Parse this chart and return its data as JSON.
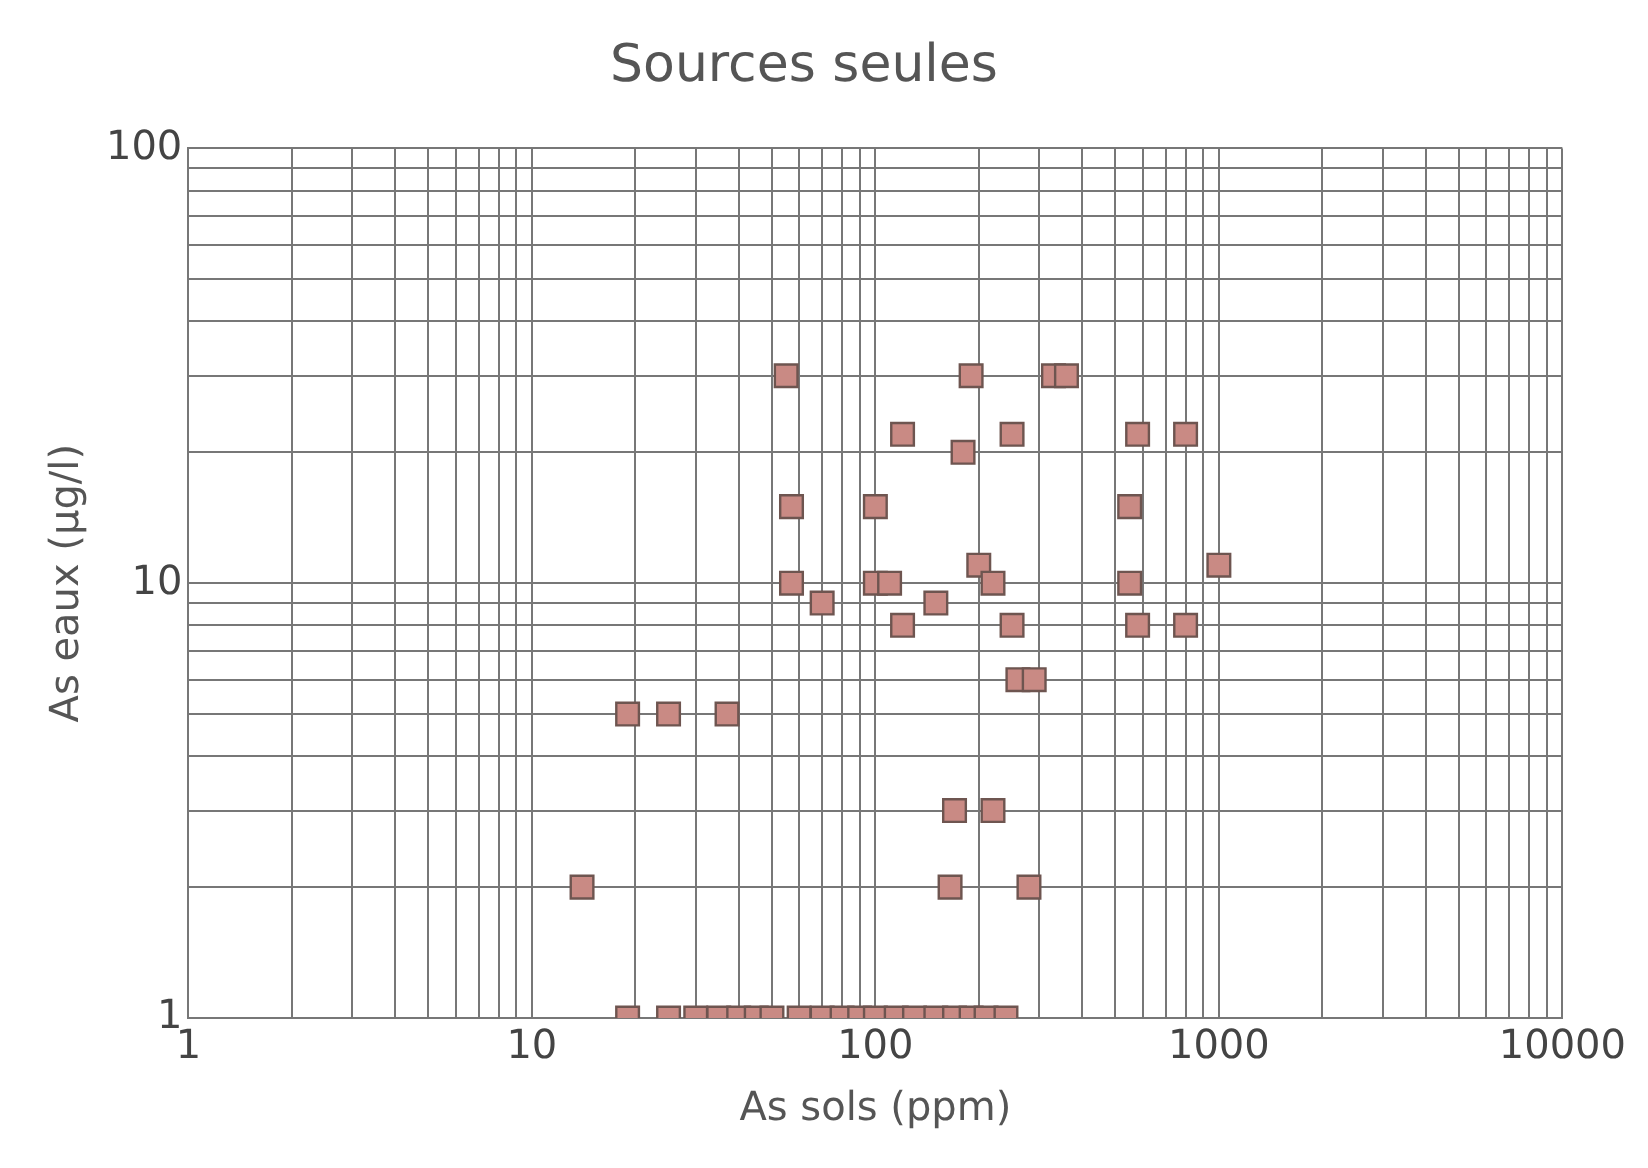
{
  "chart_data": {
    "type": "scatter",
    "title": "Sources seules",
    "xlabel": "As sols (ppm)",
    "ylabel": "As eaux (µg/l)",
    "log": "xy",
    "grid": true,
    "marker": "square",
    "xlim": [
      1,
      10000
    ],
    "ylim": [
      1,
      100
    ],
    "xticks": [
      1,
      {
        "value": 2,
        "label": null
      },
      {
        "value": 3,
        "label": null
      },
      {
        "value": 4,
        "label": null
      },
      {
        "value": 5,
        "label": null
      },
      {
        "value": 6,
        "label": null
      },
      {
        "value": 7,
        "label": null
      },
      {
        "value": 8,
        "label": null
      },
      {
        "value": 9,
        "label": null
      },
      10,
      {
        "value": 20,
        "label": null
      },
      {
        "value": 30,
        "label": null
      },
      {
        "value": 40,
        "label": null
      },
      {
        "value": 50,
        "label": null
      },
      {
        "value": 60,
        "label": null
      },
      {
        "value": 70,
        "label": null
      },
      {
        "value": 80,
        "label": null
      },
      {
        "value": 90,
        "label": null
      },
      100,
      {
        "value": 200,
        "label": null
      },
      {
        "value": 300,
        "label": null
      },
      {
        "value": 400,
        "label": null
      },
      {
        "value": 500,
        "label": null
      },
      {
        "value": 600,
        "label": null
      },
      {
        "value": 700,
        "label": null
      },
      {
        "value": 800,
        "label": null
      },
      {
        "value": 900,
        "label": null
      },
      1000,
      {
        "value": 2000,
        "label": null
      },
      {
        "value": 3000,
        "label": null
      },
      {
        "value": 4000,
        "label": null
      },
      {
        "value": 5000,
        "label": null
      },
      {
        "value": 6000,
        "label": null
      },
      {
        "value": 7000,
        "label": null
      },
      {
        "value": 8000,
        "label": null
      },
      {
        "value": 9000,
        "label": null
      },
      10000
    ],
    "yticks": [
      1,
      {
        "value": 2,
        "label": null
      },
      {
        "value": 3,
        "label": null
      },
      {
        "value": 4,
        "label": null
      },
      {
        "value": 5,
        "label": null
      },
      {
        "value": 6,
        "label": null
      },
      {
        "value": 7,
        "label": null
      },
      {
        "value": 8,
        "label": null
      },
      {
        "value": 9,
        "label": null
      },
      10,
      {
        "value": 20,
        "label": null
      },
      {
        "value": 30,
        "label": null
      },
      {
        "value": 40,
        "label": null
      },
      {
        "value": 50,
        "label": null
      },
      {
        "value": 60,
        "label": null
      },
      {
        "value": 70,
        "label": null
      },
      {
        "value": 80,
        "label": null
      },
      {
        "value": 90,
        "label": null
      },
      100
    ],
    "series": [
      {
        "color": "#c98a84",
        "x": [
          55,
          57,
          57,
          70,
          100,
          100,
          110,
          120,
          120,
          150,
          180,
          190,
          200,
          220,
          250,
          250,
          260,
          290,
          330,
          360,
          550,
          550,
          580,
          580,
          800,
          800,
          1000,
          19,
          25,
          37,
          14,
          170,
          220,
          165,
          280,
          19,
          25,
          30,
          35,
          40,
          45,
          50,
          60,
          70,
          80,
          90,
          100,
          115,
          130,
          150,
          170,
          190,
          210,
          240
        ],
        "values": [
          30,
          15,
          10,
          9,
          15,
          10,
          10,
          8,
          22,
          9,
          20,
          30,
          11,
          10,
          22,
          8,
          6,
          6,
          30,
          30,
          15,
          10,
          22,
          8,
          22,
          8,
          11,
          5,
          5,
          5,
          2,
          3,
          3,
          2,
          2,
          1,
          1,
          1,
          1,
          1,
          1,
          1,
          1,
          1,
          1,
          1,
          1,
          1,
          1,
          1,
          1,
          1,
          1,
          1
        ]
      }
    ]
  }
}
